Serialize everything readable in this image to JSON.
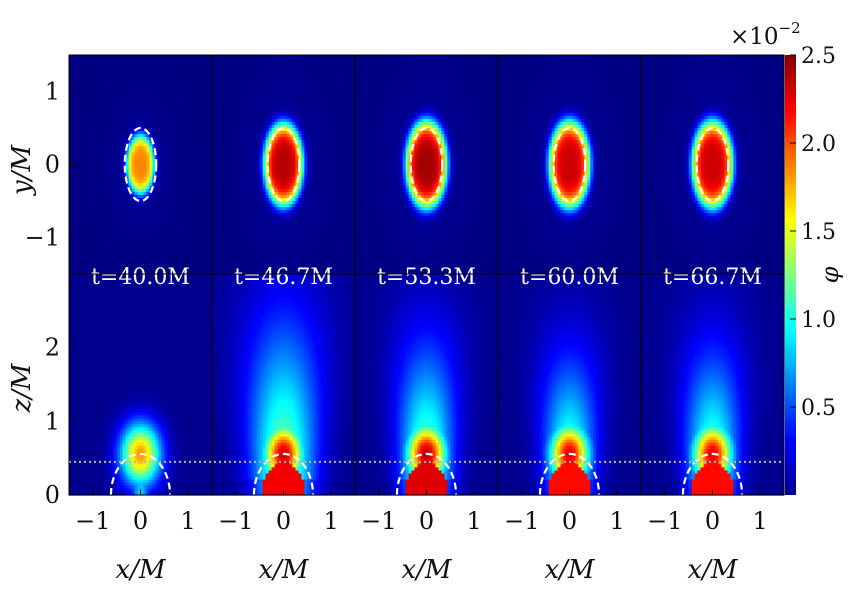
{
  "chart_data": {
    "type": "heatmap",
    "colorbar": {
      "label": "φ",
      "exponent_label": "×10",
      "exponent_power": "−2",
      "ticks": [
        "2.5",
        "2.0",
        "1.5",
        "1.0",
        "0.5"
      ],
      "tick_values": [
        2.5,
        2.0,
        1.5,
        1.0,
        0.5
      ],
      "range": [
        0.0,
        2.5
      ],
      "colormap": "jet"
    },
    "top_row": {
      "ylabel": "y/M",
      "xlim": [
        -1.5,
        1.5
      ],
      "ylim": [
        -1.5,
        1.5
      ],
      "yticks": [
        "1",
        "0",
        "−1"
      ],
      "ytick_values": [
        1,
        0,
        -1
      ]
    },
    "bottom_row": {
      "ylabel": "z/M",
      "xlabel": "x/M",
      "xlim": [
        -1.5,
        1.5
      ],
      "ylim": [
        0,
        3
      ],
      "yticks": [
        "2",
        "1",
        "0"
      ],
      "ytick_values": [
        2,
        1,
        0
      ],
      "xticks": [
        "−1",
        "0",
        "1"
      ],
      "xtick_values": [
        -1,
        0,
        1
      ],
      "dotted_line_z": 0.45
    },
    "panels": [
      {
        "time": "t=40.0M",
        "peak": 1.8,
        "top_radius": 0.4,
        "plume_height": 0.9,
        "plume_width": 0.32
      },
      {
        "time": "t=46.7M",
        "peak": 2.3,
        "top_radius": 0.55,
        "plume_height": 2.6,
        "plume_width": 1.0
      },
      {
        "time": "t=53.3M",
        "peak": 2.35,
        "top_radius": 0.58,
        "plume_height": 2.2,
        "plume_width": 0.8
      },
      {
        "time": "t=60.0M",
        "peak": 2.25,
        "top_radius": 0.58,
        "plume_height": 2.0,
        "plume_width": 0.75
      },
      {
        "time": "t=66.7M",
        "peak": 2.25,
        "top_radius": 0.58,
        "plume_height": 2.1,
        "plume_width": 0.78
      }
    ],
    "horizon_ellipse": {
      "semi_x": 0.33,
      "semi_y": 0.5
    },
    "horizon_circle_radius": 0.62
  },
  "colors": {
    "background_field": "#00008f",
    "dashed_contour": "#ffffff",
    "dotted_line": "#b8b8b8"
  }
}
